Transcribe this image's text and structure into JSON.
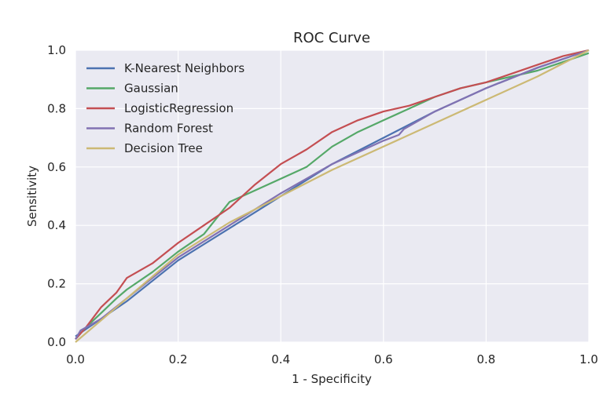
{
  "chart_data": {
    "type": "line",
    "title": "ROC Curve",
    "xlabel": "1 - Specificity",
    "ylabel": "Sensitivity",
    "xlim": [
      0.0,
      1.0
    ],
    "ylim": [
      0.0,
      1.0
    ],
    "xticks": [
      "0.0",
      "0.2",
      "0.4",
      "0.6",
      "0.8",
      "1.0"
    ],
    "yticks": [
      "0.0",
      "0.2",
      "0.4",
      "0.6",
      "0.8",
      "1.0"
    ],
    "grid": true,
    "legend_position": "top-left",
    "series": [
      {
        "name": "K-Nearest Neighbors",
        "color": "#4c72b0",
        "points": [
          [
            0,
            0.02
          ],
          [
            0.05,
            0.08
          ],
          [
            0.1,
            0.14
          ],
          [
            0.2,
            0.28
          ],
          [
            0.3,
            0.39
          ],
          [
            0.4,
            0.5
          ],
          [
            0.5,
            0.61
          ],
          [
            0.6,
            0.7
          ],
          [
            0.7,
            0.79
          ],
          [
            0.8,
            0.87
          ],
          [
            0.9,
            0.94
          ],
          [
            1.0,
            1.0
          ]
        ]
      },
      {
        "name": "Gaussian",
        "color": "#55a868",
        "points": [
          [
            0,
            0.01
          ],
          [
            0.02,
            0.05
          ],
          [
            0.05,
            0.1
          ],
          [
            0.08,
            0.15
          ],
          [
            0.1,
            0.18
          ],
          [
            0.15,
            0.24
          ],
          [
            0.2,
            0.31
          ],
          [
            0.25,
            0.37
          ],
          [
            0.3,
            0.48
          ],
          [
            0.35,
            0.52
          ],
          [
            0.4,
            0.56
          ],
          [
            0.45,
            0.6
          ],
          [
            0.5,
            0.67
          ],
          [
            0.55,
            0.72
          ],
          [
            0.6,
            0.76
          ],
          [
            0.65,
            0.8
          ],
          [
            0.7,
            0.84
          ],
          [
            0.75,
            0.87
          ],
          [
            0.8,
            0.89
          ],
          [
            0.85,
            0.91
          ],
          [
            0.9,
            0.93
          ],
          [
            0.95,
            0.96
          ],
          [
            1.0,
            0.99
          ]
        ]
      },
      {
        "name": "LogisticRegression",
        "color": "#c44e52",
        "points": [
          [
            0,
            0.01
          ],
          [
            0.02,
            0.05
          ],
          [
            0.05,
            0.12
          ],
          [
            0.08,
            0.17
          ],
          [
            0.1,
            0.22
          ],
          [
            0.15,
            0.27
          ],
          [
            0.2,
            0.34
          ],
          [
            0.25,
            0.4
          ],
          [
            0.3,
            0.46
          ],
          [
            0.35,
            0.54
          ],
          [
            0.4,
            0.61
          ],
          [
            0.45,
            0.66
          ],
          [
            0.5,
            0.72
          ],
          [
            0.55,
            0.76
          ],
          [
            0.6,
            0.79
          ],
          [
            0.65,
            0.81
          ],
          [
            0.7,
            0.84
          ],
          [
            0.75,
            0.87
          ],
          [
            0.8,
            0.89
          ],
          [
            0.85,
            0.92
          ],
          [
            0.9,
            0.95
          ],
          [
            0.95,
            0.98
          ],
          [
            1.0,
            1.0
          ]
        ]
      },
      {
        "name": "Random Forest",
        "color": "#8172b2",
        "points": [
          [
            0,
            0.01
          ],
          [
            0.01,
            0.04
          ],
          [
            0.05,
            0.08
          ],
          [
            0.1,
            0.15
          ],
          [
            0.2,
            0.29
          ],
          [
            0.3,
            0.4
          ],
          [
            0.4,
            0.51
          ],
          [
            0.5,
            0.61
          ],
          [
            0.6,
            0.69
          ],
          [
            0.63,
            0.71
          ],
          [
            0.64,
            0.73
          ],
          [
            0.7,
            0.79
          ],
          [
            0.8,
            0.87
          ],
          [
            0.9,
            0.94
          ],
          [
            1.0,
            1.0
          ]
        ]
      },
      {
        "name": "Decision Tree",
        "color": "#ccb974",
        "points": [
          [
            0,
            0.0
          ],
          [
            0.1,
            0.15
          ],
          [
            0.2,
            0.3
          ],
          [
            0.3,
            0.41
          ],
          [
            0.4,
            0.5
          ],
          [
            0.5,
            0.59
          ],
          [
            0.6,
            0.67
          ],
          [
            0.7,
            0.75
          ],
          [
            0.8,
            0.83
          ],
          [
            0.9,
            0.91
          ],
          [
            1.0,
            1.0
          ]
        ]
      }
    ]
  }
}
